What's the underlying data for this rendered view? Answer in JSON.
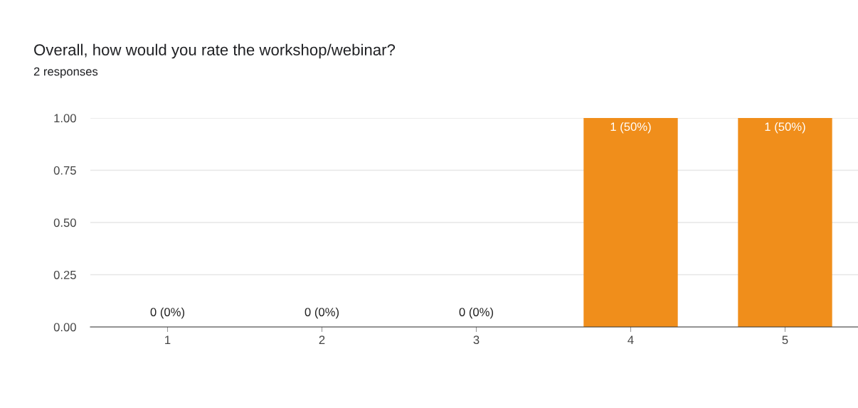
{
  "chart_data": {
    "type": "bar",
    "title": "Overall, how would you rate the workshop/webinar?",
    "subtitle": "2 responses",
    "categories": [
      "1",
      "2",
      "3",
      "4",
      "5"
    ],
    "values": [
      0,
      0,
      0,
      1,
      1
    ],
    "value_labels": [
      "0 (0%)",
      "0 (0%)",
      "0 (0%)",
      "1 (50%)",
      "1 (50%)"
    ],
    "color": "#f08e1b",
    "ylim": [
      0,
      1
    ],
    "yticks": [
      {
        "value": 0,
        "label": "0.00"
      },
      {
        "value": 0.25,
        "label": "0.25"
      },
      {
        "value": 0.5,
        "label": "0.50"
      },
      {
        "value": 0.75,
        "label": "0.75"
      },
      {
        "value": 1,
        "label": "1.00"
      }
    ],
    "grid": "y",
    "legend": false
  }
}
